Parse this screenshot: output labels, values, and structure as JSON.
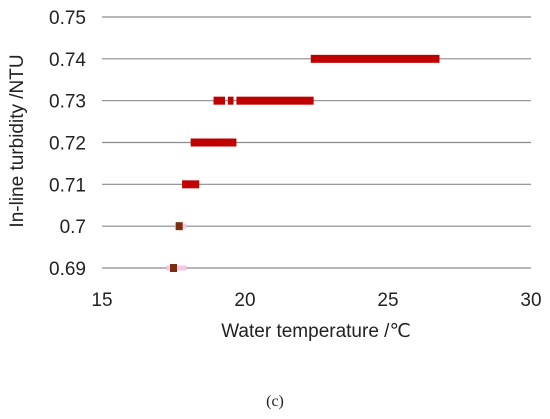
{
  "chart_data": {
    "type": "scatter",
    "xlabel": "Water temperature /℃",
    "ylabel": "In-line turbidity /NTU",
    "xlim": [
      15,
      30
    ],
    "ylim": [
      0.69,
      0.75
    ],
    "x_ticks": [
      "15",
      "20",
      "25",
      "30"
    ],
    "y_ticks": [
      "0.69",
      "0.7",
      "0.71",
      "0.72",
      "0.73",
      "0.74",
      "0.75"
    ],
    "grid": "horizontal",
    "series": [
      {
        "color": "#c00000",
        "marker": "square",
        "points": [
          {
            "y": 0.74,
            "x_from": 22.3,
            "x_to": 26.8
          },
          {
            "y": 0.73,
            "x_from": 18.9,
            "x_to": 19.3
          },
          {
            "y": 0.73,
            "x_from": 19.4,
            "x_to": 19.6
          },
          {
            "y": 0.73,
            "x_from": 19.7,
            "x_to": 22.4
          },
          {
            "y": 0.72,
            "x_from": 18.1,
            "x_to": 19.7
          },
          {
            "y": 0.71,
            "x_from": 17.8,
            "x_to": 18.4
          }
        ]
      },
      {
        "color": "#7b2d10",
        "marker": "square",
        "points": [
          {
            "y": 0.7,
            "x": 17.7
          },
          {
            "y": 0.69,
            "x": 17.5
          }
        ]
      },
      {
        "color": "#f4c6e8",
        "marker": "square",
        "points": [
          {
            "y": 0.7,
            "x_from": 17.55,
            "x_to": 17.95
          },
          {
            "y": 0.69,
            "x_from": 17.25,
            "x_to": 17.95
          }
        ]
      }
    ]
  },
  "caption": "(c)"
}
